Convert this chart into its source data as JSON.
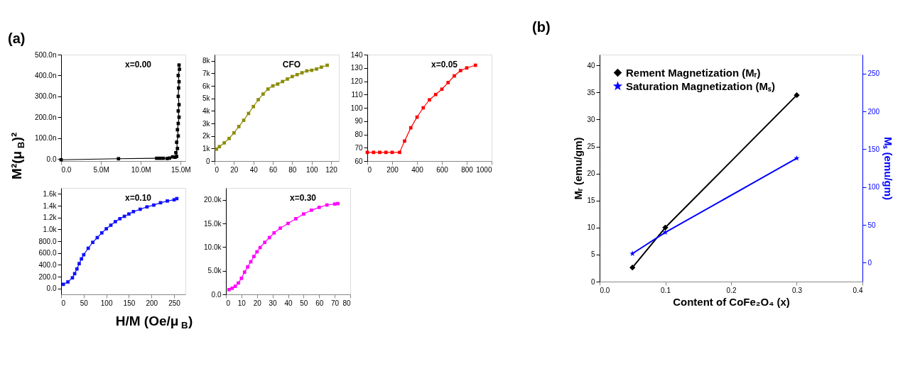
{
  "chart_data": [
    {
      "type": "line",
      "title": "x=0.00",
      "ylabel": "M²(μ$_{B}$)²",
      "annotations": [
        "(a)"
      ],
      "marker": "square",
      "line_style": "solid",
      "color": "#000000",
      "x": [
        0,
        7200000,
        12000000,
        12400000,
        12800000,
        13300000,
        13600000,
        14000000,
        14300000,
        14500000,
        14400000,
        14600000,
        14500000,
        14700000,
        14600000,
        14700000,
        14800000,
        14700000,
        14800000,
        14700000,
        14750000,
        14800000,
        14700000,
        14850000,
        14800000
      ],
      "values": [
        -4,
        1,
        3,
        3,
        3,
        2,
        4,
        10,
        8,
        12,
        30,
        50,
        80,
        110,
        140,
        170,
        200,
        230,
        260,
        300,
        340,
        370,
        400,
        430,
        450
      ],
      "xlim": [
        0,
        15600000
      ],
      "xticks": [
        {
          "value": 0,
          "label": "0.0"
        },
        {
          "value": 5000000,
          "label": "5.0M"
        },
        {
          "value": 10000000,
          "label": "10.0M"
        },
        {
          "value": 15000000,
          "label": "15.0M"
        }
      ],
      "ylim": [
        -10,
        500
      ],
      "yticks": [
        {
          "value": 0,
          "label": "0.0"
        },
        {
          "value": 100,
          "label": "100.0n"
        },
        {
          "value": 200,
          "label": "200.0n"
        },
        {
          "value": 300,
          "label": "300.0n"
        },
        {
          "value": 400,
          "label": "400.0n"
        },
        {
          "value": 500,
          "label": "500.0n"
        }
      ]
    },
    {
      "type": "line",
      "title": "CFO",
      "marker": "square",
      "line_style": "solid",
      "color": "#8c8c0a",
      "x": [
        2,
        5,
        10,
        15,
        20,
        25,
        30,
        35,
        40,
        45,
        50,
        55,
        60,
        65,
        70,
        75,
        80,
        85,
        90,
        95,
        100,
        105,
        110,
        116
      ],
      "values": [
        950,
        1150,
        1450,
        1800,
        2250,
        2750,
        3250,
        3800,
        4350,
        4900,
        5350,
        5750,
        6000,
        6150,
        6350,
        6550,
        6750,
        6900,
        7050,
        7200,
        7250,
        7350,
        7500,
        7650
      ],
      "xlim": [
        0,
        128
      ],
      "xticks": [
        0,
        20,
        40,
        60,
        80,
        100,
        120
      ],
      "ylim": [
        0,
        8500
      ],
      "yticks": [
        {
          "value": 0,
          "label": "0"
        },
        {
          "value": 1000,
          "label": "1k"
        },
        {
          "value": 2000,
          "label": "2k"
        },
        {
          "value": 3000,
          "label": "3k"
        },
        {
          "value": 4000,
          "label": "4k"
        },
        {
          "value": 5000,
          "label": "5k"
        },
        {
          "value": 6000,
          "label": "6k"
        },
        {
          "value": 7000,
          "label": "7k"
        },
        {
          "value": 8000,
          "label": "8k"
        }
      ]
    },
    {
      "type": "line",
      "title": "x=0.05",
      "marker": "square",
      "line_style": "solid",
      "color": "#ff0000",
      "x": [
        0,
        50,
        100,
        150,
        200,
        260,
        300,
        350,
        400,
        450,
        500,
        550,
        600,
        650,
        700,
        750,
        800,
        870
      ],
      "values": [
        66.5,
        66.5,
        66.5,
        66.5,
        66.5,
        66.5,
        75,
        85,
        93,
        100,
        106,
        110,
        114,
        119,
        124,
        128,
        130,
        132
      ],
      "xlim": [
        0,
        1000
      ],
      "xticks": [
        0,
        200,
        400,
        600,
        800,
        1000
      ],
      "ylim": [
        60,
        140
      ],
      "yticks": [
        60,
        70,
        80,
        90,
        100,
        110,
        120,
        130,
        140
      ]
    },
    {
      "type": "line",
      "title": "x=0.10",
      "xlabel": "H/M (Oe/μ$_{B}$)",
      "marker": "square",
      "line_style": "solid",
      "color": "#1010ff",
      "x": [
        5,
        15,
        25,
        30,
        35,
        40,
        45,
        50,
        60,
        70,
        80,
        90,
        100,
        110,
        120,
        130,
        140,
        150,
        160,
        175,
        190,
        205,
        220,
        235,
        250,
        256
      ],
      "values": [
        70,
        110,
        180,
        250,
        330,
        420,
        500,
        570,
        680,
        780,
        860,
        940,
        1010,
        1070,
        1130,
        1180,
        1220,
        1260,
        1300,
        1340,
        1380,
        1410,
        1450,
        1480,
        1500,
        1520
      ],
      "xlim": [
        0,
        275
      ],
      "xticks": [
        0,
        50,
        100,
        150,
        200,
        250
      ],
      "ylim": [
        -100,
        1700
      ],
      "yticks": [
        {
          "value": 0,
          "label": "0.0"
        },
        {
          "value": 200,
          "label": "200.0"
        },
        {
          "value": 400,
          "label": "400.0"
        },
        {
          "value": 600,
          "label": "600.0"
        },
        {
          "value": 800,
          "label": "800.0"
        },
        {
          "value": 1000,
          "label": "1.0k"
        },
        {
          "value": 1200,
          "label": "1.2k"
        },
        {
          "value": 1400,
          "label": "1.4k"
        },
        {
          "value": 1600,
          "label": "1.6k"
        }
      ]
    },
    {
      "type": "line",
      "title": "x=0.30",
      "marker": "square",
      "line_style": "solid",
      "color": "#ff00ff",
      "x": [
        2,
        4,
        6,
        8,
        10,
        12,
        14,
        16,
        18,
        20,
        22,
        25,
        28,
        31,
        35,
        40,
        45,
        50,
        55,
        60,
        65,
        70,
        72
      ],
      "values": [
        1000,
        1300,
        1700,
        2400,
        3400,
        4700,
        5800,
        6900,
        8000,
        9000,
        9900,
        11000,
        12000,
        13000,
        14000,
        15000,
        16000,
        17000,
        17800,
        18400,
        18900,
        19100,
        19200
      ],
      "xlim": [
        0,
        80
      ],
      "xticks": [
        0,
        10,
        20,
        30,
        40,
        50,
        60,
        70,
        80
      ],
      "ylim": [
        0,
        22500
      ],
      "yticks": [
        {
          "value": 0,
          "label": "0.0"
        },
        {
          "value": 5000,
          "label": "5.0k"
        },
        {
          "value": 10000,
          "label": "10.0k"
        },
        {
          "value": 15000,
          "label": "15.0k"
        },
        {
          "value": 20000,
          "label": "20.0k"
        }
      ]
    },
    {
      "type": "line",
      "xlabel": "Content of CoFe₂O₄ (x)",
      "ylabel": "Mᵣ (emu/gm)",
      "y2label": "Mₛ (emu/gm)",
      "annotations": [
        "(b)"
      ],
      "legend": "top left",
      "line_style": "solid",
      "x": [
        0.05,
        0.1,
        0.3
      ],
      "series": [
        {
          "name": "Rement Magnetization (Mᵣ)",
          "color": "#000000",
          "marker": "diamond",
          "values": [
            2.6,
            10,
            34.5
          ]
        },
        {
          "name": "Saturation Magnetization (Mₛ)",
          "color": "#0000ff",
          "marker": "star",
          "axis": "y2",
          "values": [
            12,
            40,
            138
          ]
        }
      ],
      "xlim": [
        0,
        0.4
      ],
      "xticks": [
        {
          "value": 0,
          "label": "0.0"
        },
        0.1,
        0.2,
        0.3,
        0.4
      ],
      "ylim": [
        0,
        42
      ],
      "yticks": [
        0,
        5,
        10,
        15,
        20,
        25,
        30,
        35,
        40
      ],
      "y2lim": [
        -25,
        275
      ],
      "y2ticks": [
        0,
        50,
        100,
        150,
        200,
        250
      ]
    }
  ]
}
